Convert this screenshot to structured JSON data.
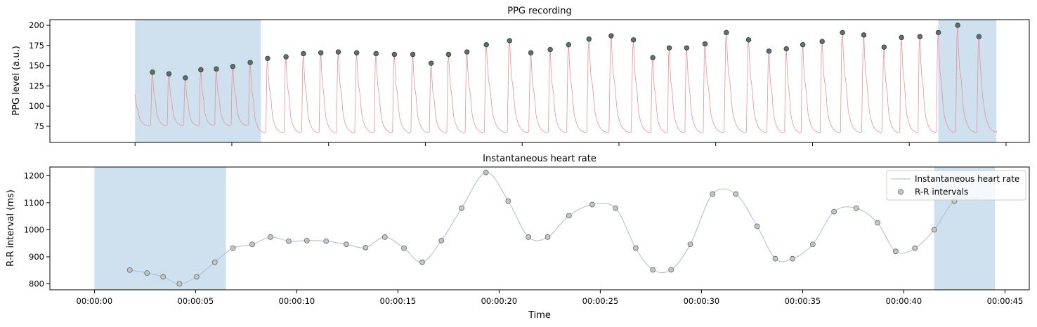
{
  "chart_data": [
    {
      "type": "line",
      "title": "PPG recording",
      "ylabel": "PPG level (a.u.)",
      "ylim": [
        55,
        207
      ],
      "yticks": [
        75,
        100,
        125,
        150,
        175,
        200
      ],
      "xlim_seconds": [
        -4.4,
        46.2
      ],
      "x_tick_values_seconds": [
        0,
        5,
        10,
        15,
        20,
        25,
        30,
        35,
        40,
        45
      ],
      "x_tick_labels_shown": false,
      "shaded_regions_seconds": [
        [
          0,
          6.5
        ],
        [
          41.5,
          44.5
        ]
      ],
      "colors": {
        "signal": "#e8919a",
        "peak_fill": "#5b7268",
        "peak_edge": "#2f3a35",
        "shade": "#cfe1ee"
      },
      "series": [
        {
          "kind": "signal",
          "baseline_first_segment": 75,
          "baseline": 66,
          "start_value": 115,
          "end_value": 70
        },
        {
          "kind": "peaks",
          "x": [
            0.9,
            1.75,
            2.6,
            3.4,
            4.2,
            5.05,
            5.95,
            6.85,
            7.8,
            8.7,
            9.6,
            10.5,
            11.45,
            12.45,
            13.4,
            14.35,
            15.3,
            16.2,
            17.15,
            18.15,
            19.35,
            20.45,
            21.45,
            22.4,
            23.45,
            24.6,
            25.75,
            26.75,
            27.6,
            28.5,
            29.45,
            30.55,
            31.7,
            32.75,
            33.65,
            34.5,
            35.5,
            36.55,
            37.65,
            38.7,
            39.6,
            40.55,
            41.5,
            42.5,
            43.6
          ],
          "y": [
            142,
            140,
            135,
            145,
            146,
            149,
            154,
            159,
            161,
            165,
            166,
            167,
            166,
            165,
            164,
            164,
            153,
            164,
            167,
            176,
            181,
            166,
            170,
            176,
            183,
            187,
            182,
            160,
            172,
            172,
            177,
            191,
            182,
            168,
            171,
            176,
            180,
            191,
            188,
            173,
            185,
            186,
            191,
            200,
            186
          ]
        }
      ]
    },
    {
      "type": "line",
      "title": "Instantaneous heart rate",
      "xlabel": "Time",
      "ylabel": "R-R interval (ms)",
      "ylim": [
        778,
        1232
      ],
      "yticks": [
        800,
        900,
        1000,
        1100,
        1200
      ],
      "xlim_seconds": [
        -2.2,
        46.2
      ],
      "x_tick_values_seconds": [
        0,
        5,
        10,
        15,
        20,
        25,
        30,
        35,
        40,
        45
      ],
      "x_tick_labels": [
        "00:00:00",
        "00:00:05",
        "00:00:10",
        "00:00:15",
        "00:00:20",
        "00:00:25",
        "00:00:30",
        "00:00:35",
        "00:00:40",
        "00:00:45"
      ],
      "shaded_regions_seconds": [
        [
          0,
          6.5
        ],
        [
          41.5,
          44.5
        ]
      ],
      "legend": {
        "position": "upper right",
        "entries": [
          "Instantaneous heart rate",
          "R-R intervals"
        ]
      },
      "colors": {
        "line": "#a9bdd6",
        "point_fill": "#c5c5c5",
        "point_edge": "#666666",
        "shade": "#cfe1ee"
      },
      "series": [
        {
          "name": "R-R intervals",
          "x": [
            1.75,
            2.6,
            3.4,
            4.2,
            5.05,
            5.95,
            6.85,
            7.8,
            8.7,
            9.6,
            10.5,
            11.45,
            12.45,
            13.4,
            14.35,
            15.3,
            16.2,
            17.15,
            18.15,
            19.35,
            20.45,
            21.45,
            22.4,
            23.45,
            24.6,
            25.75,
            26.75,
            27.6,
            28.5,
            29.45,
            30.55,
            31.7,
            32.75,
            33.65,
            34.5,
            35.5,
            36.55,
            37.65,
            38.7,
            39.6,
            40.55,
            41.5,
            42.5
          ],
          "y": [
            851,
            840,
            826,
            800,
            826,
            880,
            932,
            946,
            973,
            958,
            960,
            958,
            946,
            934,
            973,
            932,
            880,
            960,
            1080,
            1212,
            1106,
            973,
            973,
            1052,
            1093,
            1080,
            932,
            852,
            852,
            946,
            1132,
            1132,
            1013,
            893,
            893,
            946,
            1067,
            1080,
            1026,
            920,
            932,
            1000,
            1106
          ]
        },
        {
          "name": "Instantaneous heart rate",
          "interpolation": "cubic",
          "x": [
            42.5,
            43.6
          ],
          "y": [
            1106,
            1120
          ]
        }
      ]
    }
  ]
}
